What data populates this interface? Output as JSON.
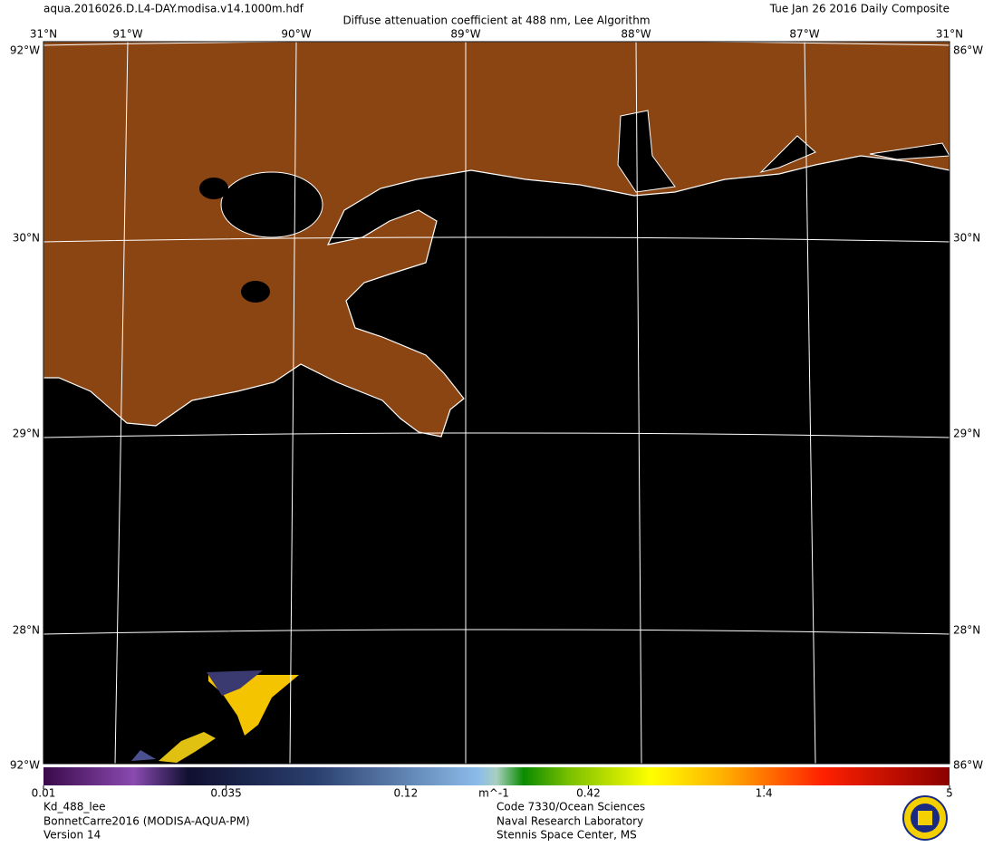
{
  "header": {
    "file": "aqua.2016026.D.L4-DAY.modisa.v14.1000m.hdf",
    "title": "Diffuse attenuation coefficient at 488 nm, Lee Algorithm",
    "date": "Tue Jan 26 2016 Daily Composite"
  },
  "map": {
    "lon_labels": [
      "91°W",
      "90°W",
      "89°W",
      "88°W",
      "87°W"
    ],
    "lat_labels": [
      "31°N",
      "30°N",
      "29°N",
      "28°N"
    ],
    "corner_labels": [
      "92°W",
      "86°W",
      "92°W",
      "86°W"
    ]
  },
  "colorbar": {
    "range": [
      0.01,
      5
    ],
    "log": true,
    "ticks": [
      0.01,
      0.035,
      0.12,
      0.42,
      1.4,
      5
    ],
    "unit": "m^-1"
  },
  "footer": {
    "left": [
      "Kd_488_lee",
      "BonnetCarre2016 (MODISA-AQUA-PM)",
      "Version 14"
    ],
    "center": [
      "Code 7330/Ocean Sciences",
      "Naval Research Laboratory",
      "Stennis Space Center, MS"
    ]
  }
}
